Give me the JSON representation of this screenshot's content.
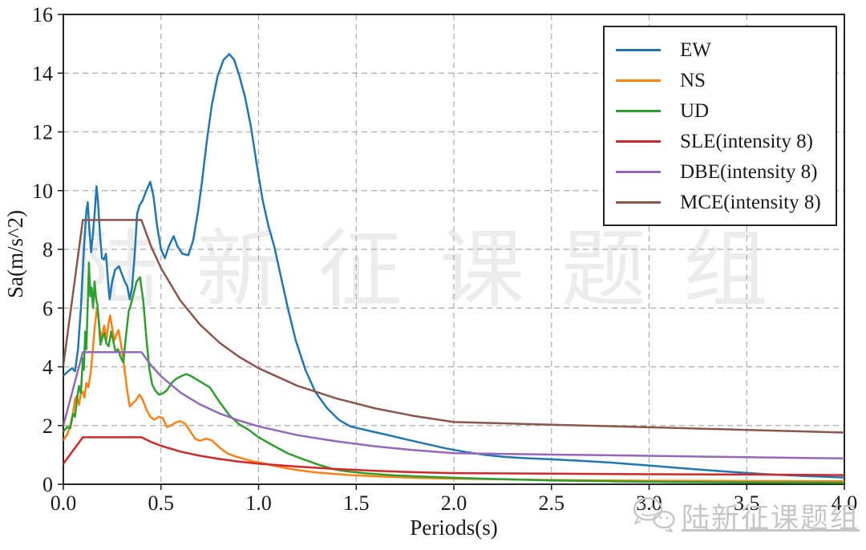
{
  "watermark": {
    "center_text": "陆新征课题组",
    "corner_text": "陆新征课题组"
  },
  "chart_data": {
    "type": "line",
    "title": "",
    "xlabel": "Periods(s)",
    "ylabel": "Sa(m/s^2)",
    "xlim": [
      0,
      4.0
    ],
    "ylim": [
      0,
      16
    ],
    "x_ticks": [
      "0.0",
      "0.5",
      "1.0",
      "1.5",
      "2.0",
      "2.5",
      "3.0",
      "3.5",
      "4.0"
    ],
    "y_ticks": [
      "0",
      "2",
      "4",
      "6",
      "8",
      "10",
      "12",
      "14",
      "16"
    ],
    "grid": true,
    "grid_style": "dashed",
    "legend_position": "upper right",
    "series": [
      {
        "label": "EW",
        "color": "#1f77b4",
        "points": [
          [
            0,
            3.7
          ],
          [
            0.025,
            3.85
          ],
          [
            0.045,
            3.95
          ],
          [
            0.06,
            3.85
          ],
          [
            0.075,
            4.6
          ],
          [
            0.09,
            6.0
          ],
          [
            0.105,
            8.0
          ],
          [
            0.118,
            9.3
          ],
          [
            0.125,
            9.6
          ],
          [
            0.133,
            8.7
          ],
          [
            0.142,
            7.9
          ],
          [
            0.15,
            8.4
          ],
          [
            0.16,
            9.2
          ],
          [
            0.17,
            10.15
          ],
          [
            0.178,
            9.6
          ],
          [
            0.188,
            8.45
          ],
          [
            0.198,
            7.7
          ],
          [
            0.208,
            7.65
          ],
          [
            0.218,
            7.85
          ],
          [
            0.228,
            7.0
          ],
          [
            0.237,
            6.3
          ],
          [
            0.25,
            6.9
          ],
          [
            0.265,
            7.3
          ],
          [
            0.285,
            7.42
          ],
          [
            0.3,
            7.15
          ],
          [
            0.315,
            6.9
          ],
          [
            0.327,
            6.75
          ],
          [
            0.34,
            6.3
          ],
          [
            0.352,
            6.7
          ],
          [
            0.365,
            7.8
          ],
          [
            0.378,
            9.2
          ],
          [
            0.39,
            9.5
          ],
          [
            0.405,
            9.65
          ],
          [
            0.425,
            10.0
          ],
          [
            0.445,
            10.3
          ],
          [
            0.462,
            9.8
          ],
          [
            0.48,
            8.8
          ],
          [
            0.5,
            8.0
          ],
          [
            0.52,
            7.7
          ],
          [
            0.54,
            8.1
          ],
          [
            0.565,
            8.45
          ],
          [
            0.585,
            8.1
          ],
          [
            0.61,
            7.85
          ],
          [
            0.64,
            7.8
          ],
          [
            0.665,
            8.3
          ],
          [
            0.69,
            9.3
          ],
          [
            0.71,
            10.3
          ],
          [
            0.735,
            11.7
          ],
          [
            0.76,
            12.9
          ],
          [
            0.79,
            13.9
          ],
          [
            0.82,
            14.45
          ],
          [
            0.85,
            14.65
          ],
          [
            0.875,
            14.45
          ],
          [
            0.9,
            13.95
          ],
          [
            0.93,
            13.2
          ],
          [
            0.96,
            12.2
          ],
          [
            0.99,
            10.9
          ],
          [
            1.02,
            9.7
          ],
          [
            1.05,
            8.8
          ],
          [
            1.08,
            8.1
          ],
          [
            1.11,
            7.2
          ],
          [
            1.15,
            6.0
          ],
          [
            1.19,
            4.9
          ],
          [
            1.24,
            3.9
          ],
          [
            1.29,
            3.15
          ],
          [
            1.35,
            2.6
          ],
          [
            1.41,
            2.2
          ],
          [
            1.47,
            1.97
          ],
          [
            1.56,
            1.83
          ],
          [
            1.66,
            1.68
          ],
          [
            1.76,
            1.52
          ],
          [
            1.86,
            1.37
          ],
          [
            1.96,
            1.22
          ],
          [
            2.06,
            1.1
          ],
          [
            2.16,
            1.0
          ],
          [
            2.26,
            0.93
          ],
          [
            2.36,
            0.89
          ],
          [
            2.5,
            0.85
          ],
          [
            2.65,
            0.8
          ],
          [
            2.8,
            0.74
          ],
          [
            3.0,
            0.64
          ],
          [
            3.2,
            0.53
          ],
          [
            3.4,
            0.43
          ],
          [
            3.6,
            0.34
          ],
          [
            3.8,
            0.28
          ],
          [
            4.0,
            0.23
          ]
        ]
      },
      {
        "label": "NS",
        "color": "#ff7f0e",
        "points": [
          [
            0,
            1.5
          ],
          [
            0.02,
            1.7
          ],
          [
            0.035,
            2.0
          ],
          [
            0.05,
            2.45
          ],
          [
            0.06,
            2.9
          ],
          [
            0.07,
            3.0
          ],
          [
            0.08,
            2.7
          ],
          [
            0.09,
            3.1
          ],
          [
            0.1,
            3.15
          ],
          [
            0.108,
            2.95
          ],
          [
            0.118,
            3.45
          ],
          [
            0.128,
            3.3
          ],
          [
            0.14,
            3.8
          ],
          [
            0.15,
            4.5
          ],
          [
            0.16,
            5.3
          ],
          [
            0.172,
            6.0
          ],
          [
            0.182,
            5.6
          ],
          [
            0.19,
            5.0
          ],
          [
            0.2,
            5.15
          ],
          [
            0.21,
            5.4
          ],
          [
            0.22,
            4.9
          ],
          [
            0.232,
            5.5
          ],
          [
            0.24,
            5.75
          ],
          [
            0.253,
            5.2
          ],
          [
            0.262,
            4.9
          ],
          [
            0.272,
            5.1
          ],
          [
            0.282,
            5.25
          ],
          [
            0.295,
            4.8
          ],
          [
            0.31,
            4.1
          ],
          [
            0.325,
            3.3
          ],
          [
            0.34,
            2.65
          ],
          [
            0.355,
            2.75
          ],
          [
            0.37,
            2.85
          ],
          [
            0.39,
            3.05
          ],
          [
            0.405,
            2.9
          ],
          [
            0.425,
            2.55
          ],
          [
            0.445,
            2.3
          ],
          [
            0.465,
            2.2
          ],
          [
            0.49,
            2.3
          ],
          [
            0.51,
            2.25
          ],
          [
            0.53,
            1.95
          ],
          [
            0.55,
            2.0
          ],
          [
            0.575,
            2.1
          ],
          [
            0.6,
            2.15
          ],
          [
            0.625,
            2.05
          ],
          [
            0.65,
            1.8
          ],
          [
            0.675,
            1.55
          ],
          [
            0.7,
            1.48
          ],
          [
            0.73,
            1.55
          ],
          [
            0.76,
            1.5
          ],
          [
            0.8,
            1.25
          ],
          [
            0.84,
            1.05
          ],
          [
            0.88,
            0.95
          ],
          [
            0.92,
            0.87
          ],
          [
            0.97,
            0.78
          ],
          [
            1.02,
            0.72
          ],
          [
            1.1,
            0.6
          ],
          [
            1.2,
            0.48
          ],
          [
            1.3,
            0.4
          ],
          [
            1.45,
            0.32
          ],
          [
            1.6,
            0.27
          ],
          [
            1.8,
            0.22
          ],
          [
            2.0,
            0.19
          ],
          [
            2.3,
            0.16
          ],
          [
            2.6,
            0.14
          ],
          [
            3.0,
            0.12
          ],
          [
            3.5,
            0.11
          ],
          [
            4.0,
            0.1
          ]
        ]
      },
      {
        "label": "UD",
        "color": "#2ca02c",
        "points": [
          [
            0,
            1.8
          ],
          [
            0.02,
            1.95
          ],
          [
            0.035,
            1.9
          ],
          [
            0.05,
            2.4
          ],
          [
            0.06,
            2.3
          ],
          [
            0.07,
            2.9
          ],
          [
            0.08,
            3.35
          ],
          [
            0.09,
            3.1
          ],
          [
            0.1,
            4.3
          ],
          [
            0.105,
            3.9
          ],
          [
            0.112,
            5.2
          ],
          [
            0.118,
            4.6
          ],
          [
            0.125,
            6.1
          ],
          [
            0.131,
            7.55
          ],
          [
            0.138,
            6.4
          ],
          [
            0.145,
            6.7
          ],
          [
            0.152,
            6.0
          ],
          [
            0.16,
            6.9
          ],
          [
            0.168,
            6.3
          ],
          [
            0.175,
            6.1
          ],
          [
            0.183,
            5.4
          ],
          [
            0.19,
            4.75
          ],
          [
            0.2,
            5.0
          ],
          [
            0.21,
            5.15
          ],
          [
            0.22,
            4.8
          ],
          [
            0.232,
            4.7
          ],
          [
            0.245,
            5.2
          ],
          [
            0.258,
            4.8
          ],
          [
            0.268,
            4.5
          ],
          [
            0.28,
            4.6
          ],
          [
            0.295,
            4.3
          ],
          [
            0.307,
            4.15
          ],
          [
            0.32,
            5.0
          ],
          [
            0.335,
            5.9
          ],
          [
            0.345,
            6.1
          ],
          [
            0.36,
            6.5
          ],
          [
            0.375,
            6.9
          ],
          [
            0.393,
            7.05
          ],
          [
            0.41,
            6.2
          ],
          [
            0.425,
            5.0
          ],
          [
            0.44,
            3.95
          ],
          [
            0.455,
            3.4
          ],
          [
            0.47,
            3.2
          ],
          [
            0.49,
            3.05
          ],
          [
            0.51,
            3.1
          ],
          [
            0.53,
            3.2
          ],
          [
            0.555,
            3.45
          ],
          [
            0.58,
            3.6
          ],
          [
            0.61,
            3.7
          ],
          [
            0.63,
            3.75
          ],
          [
            0.65,
            3.7
          ],
          [
            0.7,
            3.5
          ],
          [
            0.75,
            3.3
          ],
          [
            0.8,
            2.8
          ],
          [
            0.85,
            2.35
          ],
          [
            0.9,
            2.05
          ],
          [
            0.95,
            1.85
          ],
          [
            1.0,
            1.6
          ],
          [
            1.08,
            1.3
          ],
          [
            1.15,
            1.05
          ],
          [
            1.23,
            0.85
          ],
          [
            1.3,
            0.68
          ],
          [
            1.38,
            0.52
          ],
          [
            1.45,
            0.44
          ],
          [
            1.55,
            0.37
          ],
          [
            1.7,
            0.3
          ],
          [
            1.85,
            0.26
          ],
          [
            2.0,
            0.22
          ],
          [
            2.2,
            0.18
          ],
          [
            2.5,
            0.13
          ],
          [
            2.8,
            0.1
          ],
          [
            3.1,
            0.08
          ],
          [
            3.5,
            0.06
          ],
          [
            4.0,
            0.05
          ]
        ]
      },
      {
        "label": "SLE(intensity 8)",
        "color": "#d62728",
        "points": [
          [
            0,
            0.7
          ],
          [
            0.1,
            1.6
          ],
          [
            0.4,
            1.6
          ],
          [
            0.45,
            1.44
          ],
          [
            0.5,
            1.31
          ],
          [
            0.6,
            1.11
          ],
          [
            0.7,
            0.97
          ],
          [
            0.8,
            0.86
          ],
          [
            0.9,
            0.77
          ],
          [
            1.0,
            0.7
          ],
          [
            1.2,
            0.6
          ],
          [
            1.4,
            0.52
          ],
          [
            1.6,
            0.46
          ],
          [
            1.8,
            0.41
          ],
          [
            2.0,
            0.38
          ],
          [
            2.5,
            0.36
          ],
          [
            3.0,
            0.34
          ],
          [
            3.5,
            0.33
          ],
          [
            4.0,
            0.31
          ]
        ]
      },
      {
        "label": "DBE(intensity 8)",
        "color": "#9467bd",
        "points": [
          [
            0,
            2.0
          ],
          [
            0.1,
            4.5
          ],
          [
            0.4,
            4.5
          ],
          [
            0.45,
            4.04
          ],
          [
            0.5,
            3.68
          ],
          [
            0.6,
            3.12
          ],
          [
            0.7,
            2.72
          ],
          [
            0.8,
            2.41
          ],
          [
            0.9,
            2.17
          ],
          [
            1.0,
            1.97
          ],
          [
            1.2,
            1.67
          ],
          [
            1.4,
            1.46
          ],
          [
            1.6,
            1.29
          ],
          [
            1.8,
            1.16
          ],
          [
            2.0,
            1.06
          ],
          [
            2.5,
            1.01
          ],
          [
            3.0,
            0.97
          ],
          [
            3.5,
            0.92
          ],
          [
            4.0,
            0.88
          ]
        ]
      },
      {
        "label": "MCE(intensity 8)",
        "color": "#8c564b",
        "points": [
          [
            0,
            4.05
          ],
          [
            0.1,
            9.0
          ],
          [
            0.4,
            9.0
          ],
          [
            0.45,
            8.09
          ],
          [
            0.5,
            7.36
          ],
          [
            0.6,
            6.25
          ],
          [
            0.7,
            5.44
          ],
          [
            0.8,
            4.82
          ],
          [
            0.9,
            4.34
          ],
          [
            1.0,
            3.95
          ],
          [
            1.2,
            3.35
          ],
          [
            1.4,
            2.92
          ],
          [
            1.6,
            2.58
          ],
          [
            1.8,
            2.32
          ],
          [
            2.0,
            2.12
          ],
          [
            2.5,
            2.03
          ],
          [
            3.0,
            1.94
          ],
          [
            3.5,
            1.85
          ],
          [
            4.0,
            1.76
          ]
        ]
      }
    ]
  }
}
